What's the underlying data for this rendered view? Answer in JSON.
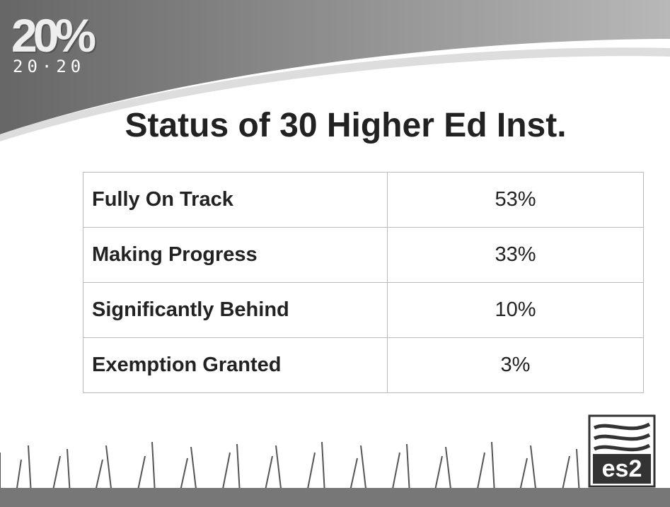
{
  "header": {
    "logo_top": "20%",
    "logo_bottom": "20·20",
    "title": "Status of 30 Higher Ed Inst."
  },
  "table": {
    "rows": [
      [
        "Fully On Track",
        "53%"
      ],
      [
        "Making Progress",
        "33%"
      ],
      [
        "Significantly Behind",
        "10%"
      ],
      [
        "Exemption Granted",
        "3%"
      ]
    ]
  },
  "footer": {
    "logo": "es2"
  }
}
